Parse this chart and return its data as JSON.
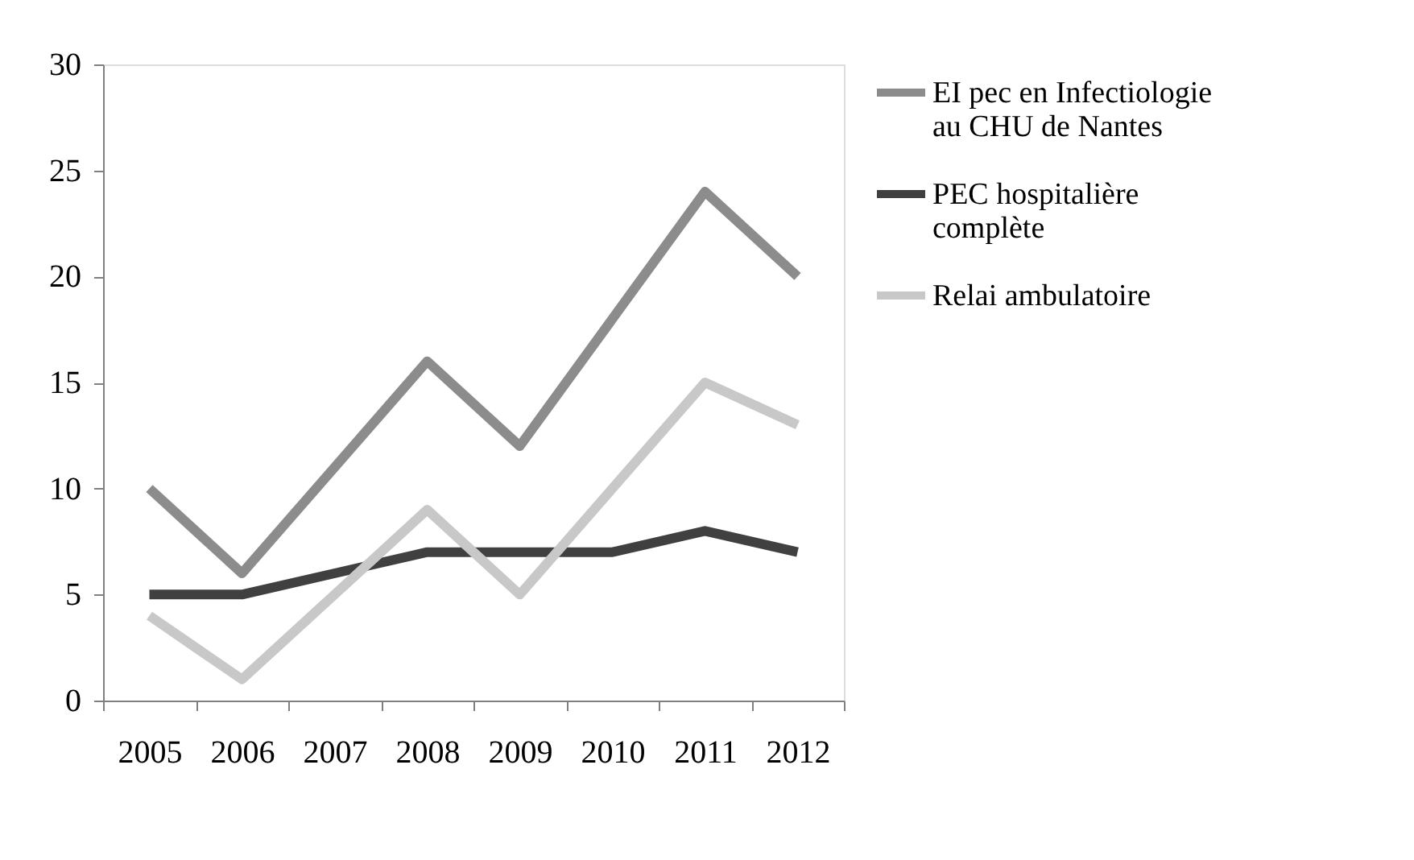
{
  "chart_data": {
    "type": "line",
    "categories": [
      "2005",
      "2006",
      "2007",
      "2008",
      "2009",
      "2010",
      "2011",
      "2012"
    ],
    "series": [
      {
        "name": "EI pec en Infectiologie au CHU de Nantes",
        "color": "#8c8c8c",
        "values": [
          10,
          6,
          11,
          16,
          12,
          18,
          24,
          20
        ]
      },
      {
        "name": "PEC hospitalière complète",
        "color": "#404040",
        "values": [
          5,
          5,
          6,
          7,
          7,
          7,
          8,
          7
        ]
      },
      {
        "name": "Relai ambulatoire",
        "color": "#c8c8c8",
        "values": [
          4,
          1,
          5,
          9,
          5,
          10,
          15,
          13
        ]
      }
    ],
    "ylim": [
      0,
      30
    ],
    "yticks": [
      0,
      5,
      10,
      15,
      20,
      25,
      30
    ],
    "grid": false,
    "legend": "right",
    "marker": "none",
    "line_style": "solid"
  }
}
